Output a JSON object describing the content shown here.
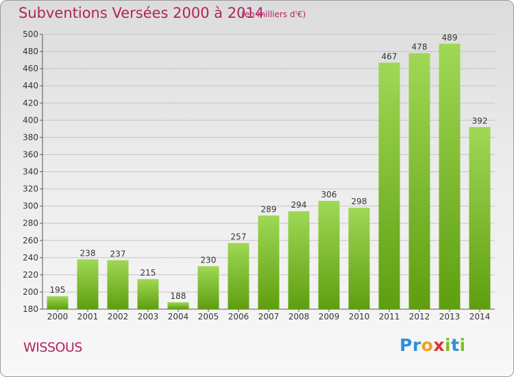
{
  "title": "Subventions Versées 2000 à 2014",
  "subtitle": "(en milliers d'€)",
  "commune": "WISSOUS",
  "logo": {
    "letters": [
      "P",
      "r",
      "o",
      "x",
      "i",
      "t",
      "i"
    ],
    "colors": [
      "#2f8fd8",
      "#2f8fd8",
      "#f0a020",
      "#e0302a",
      "#7cc02a",
      "#2f8fd8",
      "#7cc02a"
    ]
  },
  "colors": {
    "title": "#b0245e",
    "bar_top": "#9fd855",
    "bar_bottom": "#5f9e10",
    "grid": "#c4c4c4",
    "label": "#333333"
  },
  "chart_data": {
    "type": "bar",
    "categories": [
      "2000",
      "2001",
      "2002",
      "2003",
      "2004",
      "2005",
      "2006",
      "2007",
      "2008",
      "2009",
      "2010",
      "2011",
      "2012",
      "2013",
      "2014"
    ],
    "values": [
      195,
      238,
      237,
      215,
      188,
      230,
      257,
      289,
      294,
      306,
      298,
      467,
      478,
      489,
      392
    ],
    "ylim": [
      180,
      500
    ],
    "yticks": [
      180,
      200,
      220,
      240,
      260,
      280,
      300,
      320,
      340,
      360,
      380,
      400,
      420,
      440,
      460,
      480,
      500
    ],
    "grid": true,
    "data_labels": true
  }
}
